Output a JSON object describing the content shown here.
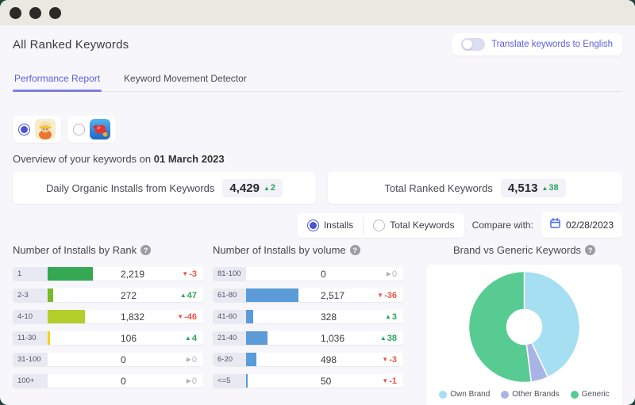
{
  "header": {
    "title": "All Ranked Keywords",
    "translate_toggle_label": "Translate keywords to English"
  },
  "tabs": [
    {
      "label": "Performance Report",
      "active": true
    },
    {
      "label": "Keyword Movement Detector",
      "active": false
    }
  ],
  "app_selector": [
    {
      "icon": "homescapes-app-icon",
      "selected": true
    },
    {
      "icon": "candy-crush-app-icon",
      "selected": false
    }
  ],
  "overview": {
    "prefix": "Overview of your keywords on",
    "date": "01 March 2023"
  },
  "stats": [
    {
      "label": "Daily Organic Installs from Keywords",
      "value": "4,429",
      "change": "2",
      "direction": "up"
    },
    {
      "label": "Total Ranked Keywords",
      "value": "4,513",
      "change": "38",
      "direction": "up"
    }
  ],
  "controls": {
    "metric_options": [
      {
        "label": "Installs",
        "selected": true
      },
      {
        "label": "Total Keywords",
        "selected": false
      }
    ],
    "compare_label": "Compare with:",
    "compare_date": "02/28/2023"
  },
  "chart_data": [
    {
      "type": "bar",
      "orientation": "horizontal",
      "title": "Number of Installs by Rank",
      "categories": [
        "1",
        "2-3",
        "4-10",
        "11-30",
        "31-100",
        "100+"
      ],
      "values": [
        2219,
        272,
        1832,
        106,
        0,
        0
      ],
      "value_labels": [
        "2,219",
        "272",
        "1,832",
        "106",
        "0",
        "0"
      ],
      "changes": [
        -3,
        47,
        -46,
        4,
        0,
        0
      ],
      "change_labels": [
        "-3",
        "47",
        "-46",
        "4",
        "0",
        "0"
      ],
      "bar_colors": [
        "#34a853",
        "#79b92c",
        "#b4cf2b",
        "#f6d21c",
        "#cccccc",
        "#cccccc"
      ],
      "max_value": 2219
    },
    {
      "type": "bar",
      "orientation": "horizontal",
      "title": "Number of Installs by volume",
      "categories": [
        "81-100",
        "61-80",
        "41-60",
        "21-40",
        "6-20",
        "<=5"
      ],
      "values": [
        0,
        2517,
        328,
        1036,
        498,
        50
      ],
      "value_labels": [
        "0",
        "2,517",
        "328",
        "1,036",
        "498",
        "50"
      ],
      "changes": [
        0,
        -36,
        3,
        38,
        -3,
        -1
      ],
      "change_labels": [
        "0",
        "-36",
        "3",
        "38",
        "-3",
        "-1"
      ],
      "bar_colors": [
        "#5a9bd8",
        "#5a9bd8",
        "#5a9bd8",
        "#5a9bd8",
        "#5a9bd8",
        "#5a9bd8"
      ],
      "max_value": 2517
    },
    {
      "type": "donut",
      "title": "Brand vs Generic Keywords",
      "slices": [
        {
          "label": "Own Brand",
          "pct": 43,
          "color": "#a5dff1"
        },
        {
          "label": "Other Brands",
          "pct": 5,
          "color": "#a9b4e6"
        },
        {
          "label": "Generic",
          "pct": 52,
          "color": "#57cb92"
        }
      ],
      "legend_position": "bottom"
    }
  ],
  "colors": {
    "accent_indigo": "#5a5fd6",
    "positive_green": "#27a65a",
    "negative_red": "#e8564a",
    "neutral_gray": "#b3b3bb"
  }
}
